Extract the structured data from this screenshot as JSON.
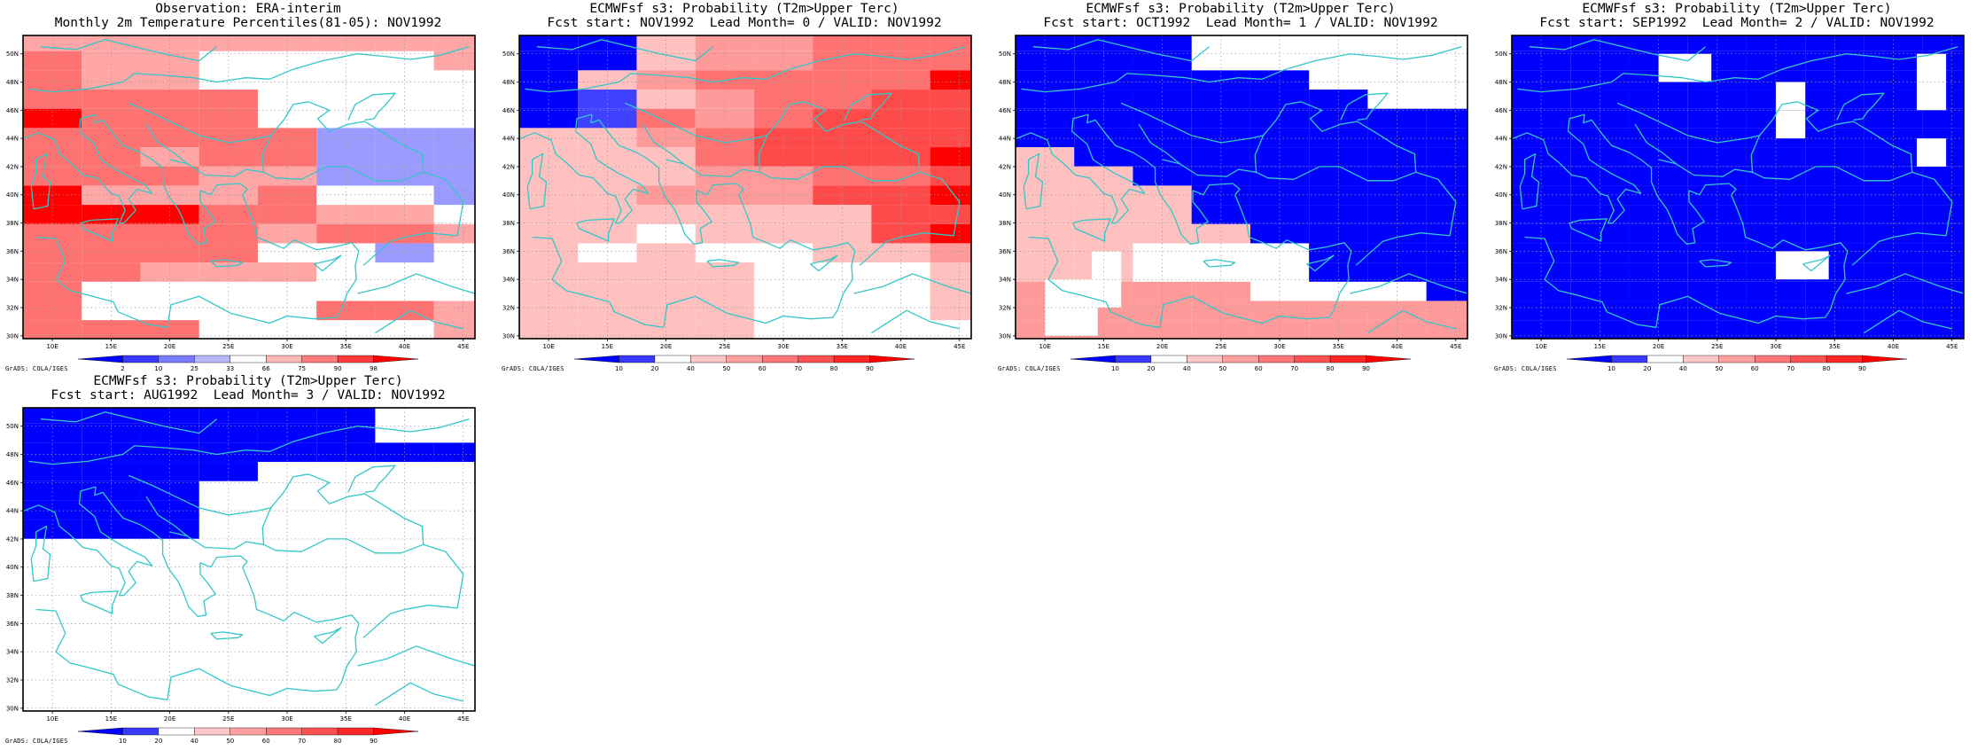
{
  "credit": "GrADS: COLA/IGES",
  "colors": {
    "frame": "#000000",
    "coast": "#33c7c7",
    "grid": "#9a9a9a"
  },
  "palette_obs": [
    "#0000ff",
    "#4646ff",
    "#9a9aff",
    "#ffffff",
    "#ffffff",
    "#ffa6a6",
    "#ff7272",
    "#ff0000"
  ],
  "palette_prob": [
    "#0000ff",
    "#4040ff",
    "#ffffff",
    "#ffc0c0",
    "#ff9a9a",
    "#ff7272",
    "#ff4a4a",
    "#ff0000"
  ],
  "panels": [
    {
      "title_line1": "Observation: ERA-interim",
      "title_line2": "Monthly 2m Temperature Percentiles(81-05): NOV1992",
      "colorbar_labels": [
        "2",
        "10",
        "25",
        "33",
        "66",
        "75",
        "90",
        "98"
      ],
      "palette": "obs"
    },
    {
      "title_line1": "ECMWFsf s3: Probability (T2m>Upper Terc)",
      "title_line2": "Fcst start: NOV1992  Lead Month= 0 / VALID: NOV1992",
      "colorbar_labels": [
        "10",
        "20",
        "40",
        "50",
        "60",
        "70",
        "80",
        "90"
      ],
      "palette": "prob"
    },
    {
      "title_line1": "ECMWFsf s3: Probability (T2m>Upper Terc)",
      "title_line2": "Fcst start: OCT1992  Lead Month= 1 / VALID: NOV1992",
      "colorbar_labels": [
        "10",
        "20",
        "40",
        "50",
        "60",
        "70",
        "80",
        "90"
      ],
      "palette": "prob"
    },
    {
      "title_line1": "ECMWFsf s3: Probability (T2m>Upper Terc)",
      "title_line2": "Fcst start: SEP1992  Lead Month= 2 / VALID: NOV1992",
      "colorbar_labels": [
        "10",
        "20",
        "40",
        "50",
        "60",
        "70",
        "80",
        "90"
      ],
      "palette": "prob"
    },
    {
      "title_line1": "ECMWFsf s3: Probability (T2m>Upper Terc)",
      "title_line2": "Fcst start: AUG1992  Lead Month= 3 / VALID: NOV1992",
      "colorbar_labels": [
        "10",
        "20",
        "40",
        "50",
        "60",
        "70",
        "80",
        "90"
      ],
      "palette": "prob"
    }
  ],
  "lon_labels": [
    "10E",
    "15E",
    "20E",
    "25E",
    "30E",
    "35E",
    "40E",
    "45E"
  ],
  "lat_labels": [
    "30N",
    "32N",
    "34N",
    "36N",
    "38N",
    "40N",
    "42N",
    "44N",
    "46N",
    "48N",
    "50N"
  ],
  "map_extent": {
    "lon": [
      7.5,
      46
    ],
    "lat": [
      29.8,
      51.3
    ]
  },
  "grid_cells": {
    "lon_start": 7.5,
    "lat_start": 29.75,
    "d": 2.5,
    "levels": [
      [
        "55555555",
        "65544445",
        "65533333",
        "66663333",
        "76663333",
        "66666222",
        "66566222",
        "66655222",
        "75556442",
        "77766554",
        "66665665",
        "66663323",
        "66555333",
        "63333344",
        "63333665",
        "66633335"
      ],
      [
        "00344555",
        "00344555",
        "03455557",
        "01345566",
        "01545666",
        "33456666",
        "33356667",
        "33344556",
        "33444667",
        "33333366",
        "33233367",
        "32322334",
        "33332223",
        "33332223",
        "33332223",
        "33332222"
      ],
      [
        "00022222",
        "00022222",
        "00000222",
        "00000022",
        "00000000",
        "00000000",
        "30000000",
        "33000000",
        "33300000",
        "33300000",
        "33330000",
        "33222000",
        "33222000",
        "44442220",
        "44444444",
        "44444444"
      ],
      [
        "00000000",
        "00000000",
        "00000000",
        "00000000",
        "00000000",
        "00000000",
        "00000000",
        "00000000",
        "00000000",
        "00000000",
        "00000000",
        "00000000",
        "00000000",
        "00000000",
        "00000000",
        "00000000"
      ],
      [
        "00000022",
        "00000022",
        "00000000",
        "00002222",
        "00022222",
        "00022222",
        "00022222",
        "22222222",
        "22222222",
        "22222222",
        "22222222",
        "22222222",
        "22222222",
        "22222222",
        "22222222",
        "22222222"
      ]
    ],
    "white_out": [
      [],
      [],
      [
        [
          10,
          30
        ],
        [
          10,
          32
        ],
        [
          12,
          30
        ],
        [
          12,
          32
        ],
        [
          14,
          32
        ],
        [
          14,
          34
        ]
      ],
      [
        [
          30,
          34
        ],
        [
          32,
          34
        ],
        [
          20,
          48
        ],
        [
          22,
          48
        ],
        [
          42,
          48
        ],
        [
          42,
          46
        ],
        [
          30,
          44
        ],
        [
          30,
          46
        ],
        [
          42,
          42
        ]
      ],
      []
    ]
  }
}
